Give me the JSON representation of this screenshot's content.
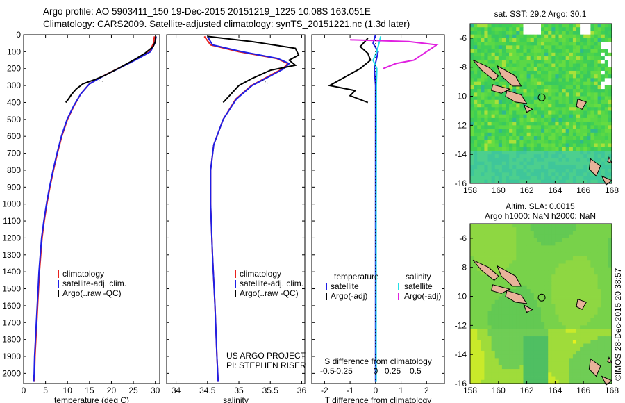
{
  "title_line1": "Argo profile: AO 5903411_150 19-Dec-2015 20151219_1225 10.08S 163.051E",
  "title_line2": "Climatology: CARS2009. Satellite-adjusted climatology: synTS_20151221.nc (1.3d later)",
  "sst_title": "sat. SST: 29.2 Argo: 30.1",
  "sla_title_1": "Altim. SLA: 0.0015",
  "sla_title_2": "Argo h1000: NaN h2000: NaN",
  "stamp": "©IMOS 28-Dec-2015 20:38:57",
  "colors": {
    "climatology": "#e8211d",
    "satellite": "#1f1fe6",
    "argo": "#000000",
    "sat_sal": "#22e0e8",
    "argo_sal": "#e020e0"
  },
  "chart_data": [
    {
      "type": "line",
      "id": "temperature",
      "xlabel": "temperature (deg C)",
      "ylabel": "",
      "xlim": [
        0,
        31
      ],
      "ylim": [
        2060,
        0
      ],
      "xticks": [
        0,
        5,
        10,
        15,
        20,
        25,
        30
      ],
      "yticks": [
        0,
        100,
        200,
        300,
        400,
        500,
        600,
        700,
        800,
        900,
        1000,
        1100,
        1200,
        1300,
        1400,
        1500,
        1600,
        1700,
        1800,
        1900,
        2000
      ],
      "legend": {
        "placement": "lower-left",
        "entries": [
          "climatology",
          "satellite-adj. clim.",
          "Argo(..raw -QC)"
        ]
      },
      "series": [
        {
          "name": "climatology",
          "color": "#e8211d",
          "points": [
            [
              29.8,
              10
            ],
            [
              29.6,
              50
            ],
            [
              28.7,
              100
            ],
            [
              25.2,
              150
            ],
            [
              21.5,
              200
            ],
            [
              18,
              245
            ],
            [
              15,
              290
            ],
            [
              13,
              350
            ],
            [
              11.5,
              420
            ],
            [
              10,
              500
            ],
            [
              8.7,
              600
            ],
            [
              7.7,
              700
            ],
            [
              6.8,
              800
            ],
            [
              6.0,
              900
            ],
            [
              5.3,
              1000
            ],
            [
              4.7,
              1100
            ],
            [
              4.2,
              1200
            ],
            [
              3.9,
              1300
            ],
            [
              3.6,
              1400
            ],
            [
              3.4,
              1500
            ],
            [
              3.2,
              1600
            ],
            [
              3.0,
              1700
            ],
            [
              2.8,
              1800
            ],
            [
              2.6,
              1900
            ],
            [
              2.5,
              2000
            ],
            [
              2.4,
              2050
            ]
          ]
        },
        {
          "name": "satellite-adj. clim.",
          "color": "#1f1fe6",
          "points": [
            [
              30.2,
              10
            ],
            [
              29.9,
              50
            ],
            [
              28.9,
              100
            ],
            [
              25.4,
              150
            ],
            [
              21.6,
              200
            ],
            [
              18.1,
              245
            ],
            [
              15,
              290
            ],
            [
              13,
              350
            ],
            [
              11.4,
              420
            ],
            [
              9.9,
              500
            ],
            [
              8.6,
              600
            ],
            [
              7.6,
              700
            ],
            [
              6.7,
              800
            ],
            [
              5.9,
              900
            ],
            [
              5.2,
              1000
            ],
            [
              4.6,
              1100
            ],
            [
              4.1,
              1200
            ],
            [
              3.8,
              1300
            ],
            [
              3.5,
              1400
            ],
            [
              3.3,
              1500
            ],
            [
              3.1,
              1600
            ],
            [
              2.9,
              1700
            ],
            [
              2.7,
              1800
            ],
            [
              2.5,
              1900
            ],
            [
              2.4,
              2000
            ],
            [
              2.3,
              2050
            ]
          ]
        },
        {
          "name": "Argo(..raw -QC)",
          "color": "#000000",
          "points": [
            [
              30.1,
              10
            ],
            [
              30.0,
              40
            ],
            [
              29.5,
              70
            ],
            [
              27.6,
              110
            ],
            [
              25,
              150
            ],
            [
              21.5,
              200
            ],
            [
              18.5,
              240
            ],
            [
              16.2,
              265
            ],
            [
              13.5,
              290
            ],
            [
              12,
              320
            ],
            [
              11,
              350
            ],
            [
              10.2,
              380
            ],
            [
              9.6,
              400
            ]
          ]
        }
      ]
    },
    {
      "type": "line",
      "id": "salinity",
      "xlabel": "salinity",
      "xlim": [
        33.85,
        36.05
      ],
      "ylim": [
        2060,
        0
      ],
      "xticks": [
        34,
        34.5,
        35,
        35.5,
        36
      ],
      "legend": {
        "placement": "lower-right",
        "entries": [
          "climatology",
          "satellite-adj. clim.",
          "Argo(..raw -QC)"
        ]
      },
      "annotations": [
        "US ARGO PROJECT",
        "PI: STEPHEN RISER"
      ],
      "series": [
        {
          "name": "climatology",
          "color": "#e8211d",
          "points": [
            [
              34.45,
              10
            ],
            [
              34.55,
              60
            ],
            [
              35.0,
              100
            ],
            [
              35.6,
              140
            ],
            [
              35.78,
              170
            ],
            [
              35.7,
              200
            ],
            [
              35.45,
              250
            ],
            [
              35.2,
              300
            ],
            [
              34.95,
              380
            ],
            [
              34.75,
              500
            ],
            [
              34.6,
              650
            ],
            [
              34.55,
              800
            ],
            [
              34.55,
              1000
            ],
            [
              34.58,
              1300
            ],
            [
              34.62,
              1600
            ],
            [
              34.65,
              1900
            ],
            [
              34.67,
              2050
            ]
          ]
        },
        {
          "name": "satellite-adj. clim.",
          "color": "#1f1fe6",
          "points": [
            [
              34.5,
              10
            ],
            [
              34.58,
              60
            ],
            [
              35.05,
              100
            ],
            [
              35.62,
              140
            ],
            [
              35.8,
              170
            ],
            [
              35.72,
              200
            ],
            [
              35.47,
              250
            ],
            [
              35.21,
              300
            ],
            [
              34.96,
              380
            ],
            [
              34.75,
              500
            ],
            [
              34.6,
              650
            ],
            [
              34.55,
              800
            ],
            [
              34.55,
              1000
            ],
            [
              34.58,
              1300
            ],
            [
              34.62,
              1600
            ],
            [
              34.65,
              1900
            ],
            [
              34.67,
              2050
            ]
          ]
        },
        {
          "name": "Argo(..raw -QC)",
          "color": "#000000",
          "points": [
            [
              34.5,
              10
            ],
            [
              35.2,
              40
            ],
            [
              35.9,
              80
            ],
            [
              35.95,
              120
            ],
            [
              35.8,
              150
            ],
            [
              35.9,
              180
            ],
            [
              35.5,
              210
            ],
            [
              35.2,
              260
            ],
            [
              35.0,
              300
            ],
            [
              34.85,
              360
            ],
            [
              34.75,
              400
            ]
          ]
        }
      ]
    },
    {
      "type": "line",
      "id": "difference",
      "xlabel": "T difference from climatology",
      "xlabel_top": "S difference from climatology",
      "xlim": [
        -2.5,
        2.7
      ],
      "ylim": [
        2060,
        0
      ],
      "xticks": [
        -2,
        -1,
        0,
        1,
        2
      ],
      "s_ticks": [
        "-0.5",
        "-0.25",
        "0",
        "0.25",
        "0.5"
      ],
      "legend": {
        "placement": "top",
        "groups": [
          {
            "title": "temperature",
            "entries": [
              "satellite",
              "Argo(-adj)"
            ]
          },
          {
            "title": "salinity",
            "entries": [
              "satellite",
              "Argo(-adj)"
            ]
          }
        ]
      },
      "series": [
        {
          "name": "temperature satellite",
          "color": "#1f1fe6",
          "points": [
            [
              0,
              0
            ],
            [
              -0.1,
              50
            ],
            [
              0.1,
              100
            ],
            [
              -0.05,
              200
            ],
            [
              0,
              300
            ],
            [
              0,
              500
            ],
            [
              0,
              1000
            ],
            [
              0,
              2050
            ]
          ]
        },
        {
          "name": "temperature Argo(-adj)",
          "color": "#000000",
          "points": [
            [
              -0.3,
              20
            ],
            [
              -0.6,
              70
            ],
            [
              -0.3,
              110
            ],
            [
              -0.2,
              150
            ],
            [
              -0.6,
              200
            ],
            [
              -1.2,
              250
            ],
            [
              -1.8,
              300
            ],
            [
              -0.8,
              330
            ],
            [
              -1.0,
              360
            ],
            [
              -0.3,
              400
            ]
          ]
        },
        {
          "name": "salinity satellite",
          "color": "#22e0e8",
          "points": [
            [
              0.2,
              10
            ],
            [
              0.05,
              100
            ],
            [
              -0.1,
              150
            ],
            [
              0.05,
              200
            ],
            [
              0.03,
              300
            ],
            [
              0.03,
              500
            ],
            [
              0.02,
              1000
            ],
            [
              0.02,
              2050
            ]
          ]
        },
        {
          "name": "salinity Argo(-adj)",
          "color": "#e020e0",
          "points": [
            [
              -1.0,
              30
            ],
            [
              1.3,
              40
            ],
            [
              2.4,
              60
            ],
            [
              1.5,
              150
            ],
            [
              0.8,
              170
            ],
            [
              0.3,
              200
            ]
          ]
        }
      ]
    },
    {
      "type": "heatmap",
      "id": "sst-map",
      "title": "sat. SST: 29.2 Argo: 30.1",
      "xlim": [
        158,
        168
      ],
      "ylim": [
        -16,
        -5
      ],
      "xticks": [
        158,
        160,
        162,
        164,
        166,
        168
      ],
      "yticks": [
        -6,
        -8,
        -10,
        -12,
        -14,
        -16
      ],
      "marker": {
        "lon": 163.051,
        "lat": -10.08
      }
    },
    {
      "type": "heatmap",
      "id": "sla-map",
      "title": "Altim. SLA: 0.0015",
      "subtitle": "Argo h1000: NaN h2000: NaN",
      "xlim": [
        158,
        168
      ],
      "ylim": [
        -16,
        -5
      ],
      "xticks": [
        158,
        160,
        162,
        164,
        166,
        168
      ],
      "yticks": [
        -6,
        -8,
        -10,
        -12,
        -14,
        -16
      ],
      "marker": {
        "lon": 163.051,
        "lat": -10.08
      }
    }
  ]
}
